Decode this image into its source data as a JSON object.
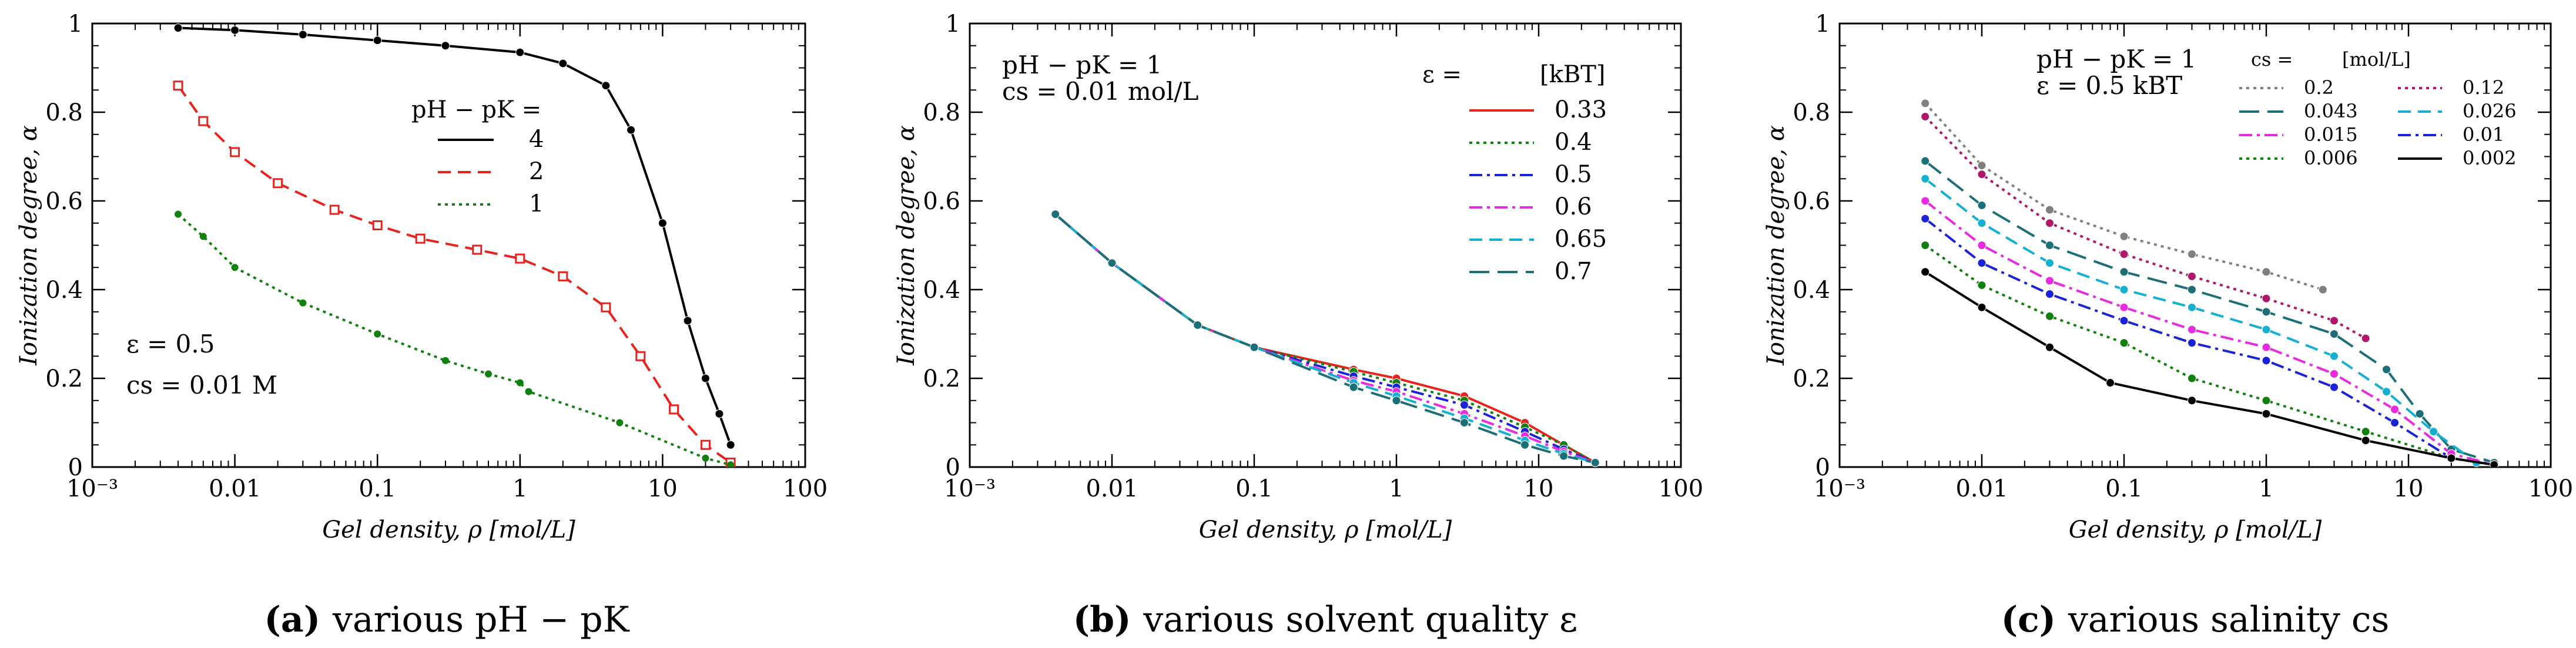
{
  "chart_data": [
    {
      "id": "a",
      "type": "line",
      "caption_letter": "(a)",
      "caption_text": "various pH − pK",
      "xlabel": "Gel density, ρ [mol/L]",
      "ylabel": "Ionization degree, α",
      "xscale": "log",
      "xlim": [
        0.001,
        100
      ],
      "ylim": [
        0,
        1
      ],
      "xticks": [
        "10⁻³",
        "0.01",
        "0.1",
        "1",
        "10",
        "100"
      ],
      "yticks": [
        "0",
        "0.2",
        "0.4",
        "0.6",
        "0.8",
        "1"
      ],
      "legend_title": "pH − pK =",
      "annotations": [
        "ε = 0.5",
        "cs = 0.01 M"
      ],
      "series": [
        {
          "name": "4",
          "color": "#000000",
          "marker": "circle",
          "dash": "solid",
          "points": [
            [
              0.004,
              0.99
            ],
            [
              0.01,
              0.985
            ],
            [
              0.03,
              0.975
            ],
            [
              0.1,
              0.962
            ],
            [
              0.3,
              0.95
            ],
            [
              1,
              0.935
            ],
            [
              2,
              0.91
            ],
            [
              4,
              0.86
            ],
            [
              6,
              0.76
            ],
            [
              10,
              0.55
            ],
            [
              15,
              0.33
            ],
            [
              20,
              0.2
            ],
            [
              25,
              0.12
            ],
            [
              30,
              0.05
            ]
          ]
        },
        {
          "name": "2",
          "color": "#e8231d",
          "marker": "square-open",
          "dash": "dashed",
          "points": [
            [
              0.004,
              0.86
            ],
            [
              0.006,
              0.78
            ],
            [
              0.01,
              0.71
            ],
            [
              0.02,
              0.64
            ],
            [
              0.05,
              0.58
            ],
            [
              0.1,
              0.545
            ],
            [
              0.2,
              0.515
            ],
            [
              0.5,
              0.49
            ],
            [
              1,
              0.47
            ],
            [
              2,
              0.43
            ],
            [
              4,
              0.36
            ],
            [
              7,
              0.25
            ],
            [
              12,
              0.13
            ],
            [
              20,
              0.05
            ],
            [
              30,
              0.01
            ]
          ]
        },
        {
          "name": "1",
          "color": "#12800e",
          "marker": "star",
          "dash": "dotted",
          "points": [
            [
              0.004,
              0.57
            ],
            [
              0.006,
              0.52
            ],
            [
              0.01,
              0.45
            ],
            [
              0.03,
              0.37
            ],
            [
              0.1,
              0.3
            ],
            [
              0.3,
              0.24
            ],
            [
              0.6,
              0.21
            ],
            [
              1,
              0.19
            ],
            [
              1.15,
              0.17
            ],
            [
              5,
              0.1
            ],
            [
              20,
              0.02
            ],
            [
              30,
              0.005
            ]
          ]
        }
      ]
    },
    {
      "id": "b",
      "type": "line",
      "caption_letter": "(b)",
      "caption_text": "various solvent quality ε",
      "xlabel": "Gel density, ρ [mol/L]",
      "ylabel": "Ionization degree, α",
      "xscale": "log",
      "xlim": [
        0.001,
        100
      ],
      "ylim": [
        0,
        1
      ],
      "xticks": [
        "10⁻³",
        "0.01",
        "0.1",
        "1",
        "10",
        "100"
      ],
      "yticks": [
        "0",
        "0.2",
        "0.4",
        "0.6",
        "0.8",
        "1"
      ],
      "legend_title": "ε =",
      "legend_unit": "[kBT]",
      "annotations": [
        "pH − pK = 1",
        "cs = 0.01 mol/L"
      ],
      "series": [
        {
          "name": "0.33",
          "color": "#e8231d",
          "dash": "solid",
          "points": [
            [
              0.004,
              0.57
            ],
            [
              0.01,
              0.46
            ],
            [
              0.04,
              0.32
            ],
            [
              0.1,
              0.27
            ],
            [
              0.5,
              0.22
            ],
            [
              1,
              0.2
            ],
            [
              3,
              0.16
            ],
            [
              8,
              0.1
            ],
            [
              15,
              0.05
            ],
            [
              25,
              0.01
            ]
          ]
        },
        {
          "name": "0.4",
          "color": "#12800e",
          "dash": "dotted",
          "points": [
            [
              0.004,
              0.57
            ],
            [
              0.01,
              0.46
            ],
            [
              0.04,
              0.32
            ],
            [
              0.1,
              0.27
            ],
            [
              0.5,
              0.215
            ],
            [
              1,
              0.19
            ],
            [
              3,
              0.15
            ],
            [
              8,
              0.09
            ],
            [
              15,
              0.05
            ],
            [
              25,
              0.01
            ]
          ]
        },
        {
          "name": "0.5",
          "color": "#1a23d6",
          "dash": "dashdot",
          "points": [
            [
              0.004,
              0.57
            ],
            [
              0.01,
              0.46
            ],
            [
              0.04,
              0.32
            ],
            [
              0.1,
              0.27
            ],
            [
              0.5,
              0.205
            ],
            [
              1,
              0.18
            ],
            [
              3,
              0.14
            ],
            [
              8,
              0.08
            ],
            [
              15,
              0.04
            ],
            [
              25,
              0.01
            ]
          ]
        },
        {
          "name": "0.6",
          "color": "#e82ae0",
          "dash": "dashdot",
          "points": [
            [
              0.004,
              0.57
            ],
            [
              0.01,
              0.46
            ],
            [
              0.04,
              0.32
            ],
            [
              0.1,
              0.27
            ],
            [
              0.5,
              0.195
            ],
            [
              1,
              0.17
            ],
            [
              3,
              0.12
            ],
            [
              8,
              0.07
            ],
            [
              15,
              0.035
            ],
            [
              25,
              0.01
            ]
          ]
        },
        {
          "name": "0.65",
          "color": "#15b0d1",
          "dash": "dashed",
          "points": [
            [
              0.004,
              0.57
            ],
            [
              0.01,
              0.46
            ],
            [
              0.04,
              0.32
            ],
            [
              0.1,
              0.27
            ],
            [
              0.5,
              0.19
            ],
            [
              1,
              0.16
            ],
            [
              3,
              0.11
            ],
            [
              8,
              0.06
            ],
            [
              15,
              0.03
            ],
            [
              25,
              0.01
            ]
          ]
        },
        {
          "name": "0.7",
          "color": "#1c6e77",
          "dash": "longdash",
          "points": [
            [
              0.004,
              0.57
            ],
            [
              0.01,
              0.46
            ],
            [
              0.04,
              0.32
            ],
            [
              0.1,
              0.27
            ],
            [
              0.5,
              0.18
            ],
            [
              1,
              0.15
            ],
            [
              3,
              0.1
            ],
            [
              8,
              0.05
            ],
            [
              15,
              0.025
            ],
            [
              25,
              0.01
            ]
          ]
        }
      ]
    },
    {
      "id": "c",
      "type": "line",
      "caption_letter": "(c)",
      "caption_text": "various salinity cs",
      "xlabel": "Gel density, ρ [mol/L]",
      "ylabel": "Ionization degree, α",
      "xscale": "log",
      "xlim": [
        0.001,
        100
      ],
      "ylim": [
        0,
        1
      ],
      "xticks": [
        "10⁻³",
        "0.01",
        "0.1",
        "1",
        "10",
        "100"
      ],
      "yticks": [
        "0",
        "0.2",
        "0.4",
        "0.6",
        "0.8",
        "1"
      ],
      "legend_title": "cs =",
      "legend_unit": "[mol/L]",
      "annotations": [
        "pH − pK = 1",
        "ε = 0.5 kBT"
      ],
      "series": [
        {
          "name": "0.2",
          "color": "#808080",
          "dash": "dotted",
          "points": [
            [
              0.004,
              0.82
            ],
            [
              0.01,
              0.68
            ],
            [
              0.03,
              0.58
            ],
            [
              0.1,
              0.52
            ],
            [
              0.3,
              0.48
            ],
            [
              1,
              0.44
            ],
            [
              2.5,
              0.4
            ]
          ]
        },
        {
          "name": "0.12",
          "color": "#b0176a",
          "dash": "dotted",
          "points": [
            [
              0.004,
              0.79
            ],
            [
              0.01,
              0.66
            ],
            [
              0.03,
              0.55
            ],
            [
              0.1,
              0.48
            ],
            [
              0.3,
              0.43
            ],
            [
              1,
              0.38
            ],
            [
              3,
              0.33
            ],
            [
              5,
              0.29
            ]
          ]
        },
        {
          "name": "0.043",
          "color": "#1c6e77",
          "dash": "longdash",
          "points": [
            [
              0.004,
              0.69
            ],
            [
              0.01,
              0.59
            ],
            [
              0.03,
              0.5
            ],
            [
              0.1,
              0.44
            ],
            [
              0.3,
              0.4
            ],
            [
              1,
              0.35
            ],
            [
              3,
              0.3
            ],
            [
              7,
              0.22
            ],
            [
              12,
              0.12
            ],
            [
              20,
              0.04
            ],
            [
              40,
              0.01
            ]
          ]
        },
        {
          "name": "0.026",
          "color": "#15b0d1",
          "dash": "dashed",
          "points": [
            [
              0.004,
              0.65
            ],
            [
              0.01,
              0.55
            ],
            [
              0.03,
              0.46
            ],
            [
              0.1,
              0.4
            ],
            [
              0.3,
              0.36
            ],
            [
              1,
              0.31
            ],
            [
              3,
              0.25
            ],
            [
              7,
              0.17
            ],
            [
              15,
              0.08
            ],
            [
              30,
              0.01
            ]
          ]
        },
        {
          "name": "0.015",
          "color": "#e82ae0",
          "dash": "dashdot",
          "points": [
            [
              0.004,
              0.6
            ],
            [
              0.01,
              0.5
            ],
            [
              0.03,
              0.42
            ],
            [
              0.1,
              0.36
            ],
            [
              0.3,
              0.31
            ],
            [
              1,
              0.27
            ],
            [
              3,
              0.21
            ],
            [
              8,
              0.13
            ],
            [
              20,
              0.03
            ],
            [
              40,
              0.005
            ]
          ]
        },
        {
          "name": "0.01",
          "color": "#1a23d6",
          "dash": "dashdot",
          "points": [
            [
              0.004,
              0.56
            ],
            [
              0.01,
              0.46
            ],
            [
              0.03,
              0.39
            ],
            [
              0.1,
              0.33
            ],
            [
              0.3,
              0.28
            ],
            [
              1,
              0.24
            ],
            [
              3,
              0.18
            ],
            [
              8,
              0.1
            ],
            [
              20,
              0.02
            ],
            [
              40,
              0.005
            ]
          ]
        },
        {
          "name": "0.006",
          "color": "#12800e",
          "dash": "dotted",
          "points": [
            [
              0.004,
              0.5
            ],
            [
              0.01,
              0.41
            ],
            [
              0.03,
              0.34
            ],
            [
              0.1,
              0.28
            ],
            [
              0.3,
              0.2
            ],
            [
              1,
              0.15
            ],
            [
              5,
              0.08
            ],
            [
              20,
              0.02
            ],
            [
              40,
              0.005
            ]
          ]
        },
        {
          "name": "0.002",
          "color": "#000000",
          "dash": "solid",
          "points": [
            [
              0.004,
              0.44
            ],
            [
              0.01,
              0.36
            ],
            [
              0.03,
              0.27
            ],
            [
              0.08,
              0.19
            ],
            [
              0.3,
              0.15
            ],
            [
              1,
              0.12
            ],
            [
              5,
              0.06
            ],
            [
              20,
              0.02
            ],
            [
              40,
              0.005
            ]
          ]
        }
      ]
    }
  ]
}
